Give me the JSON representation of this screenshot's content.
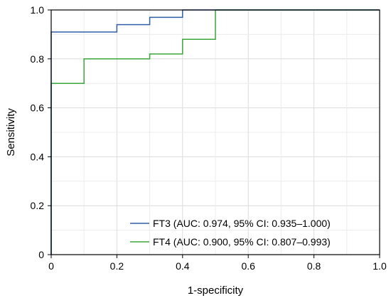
{
  "chart_data": {
    "type": "line",
    "title": "",
    "xlabel": "1-specificity",
    "ylabel": "Sensitivity",
    "xlim": [
      0,
      1
    ],
    "ylim": [
      0,
      1
    ],
    "x_ticks": [
      "0",
      "0.2",
      "0.4",
      "0.6",
      "0.8",
      "1.0"
    ],
    "y_ticks": [
      "0",
      "0.2",
      "0.4",
      "0.6",
      "0.8",
      "1.0"
    ],
    "grid": true,
    "legend_position": "bottom-right",
    "series": [
      {
        "name": "FT3 (AUC: 0.974, 95% CI: 0.935–1.000)",
        "color": "#2f5fa8",
        "x": [
          0,
          0,
          0,
          0.2,
          0.2,
          0.3,
          0.3,
          0.4,
          0.4,
          0.5,
          1.0
        ],
        "y": [
          0,
          0.7,
          0.91,
          0.91,
          0.94,
          0.94,
          0.97,
          0.97,
          1.0,
          1.0,
          1.0
        ]
      },
      {
        "name": "FT4 (AUC: 0.900, 95% CI: 0.807–0.993)",
        "color": "#3aa63a",
        "x": [
          0,
          0,
          0.1,
          0.1,
          0.3,
          0.3,
          0.4,
          0.4,
          0.5,
          0.5,
          1.0
        ],
        "y": [
          0,
          0.7,
          0.7,
          0.8,
          0.8,
          0.82,
          0.82,
          0.88,
          0.88,
          1.0,
          1.0
        ]
      }
    ]
  }
}
